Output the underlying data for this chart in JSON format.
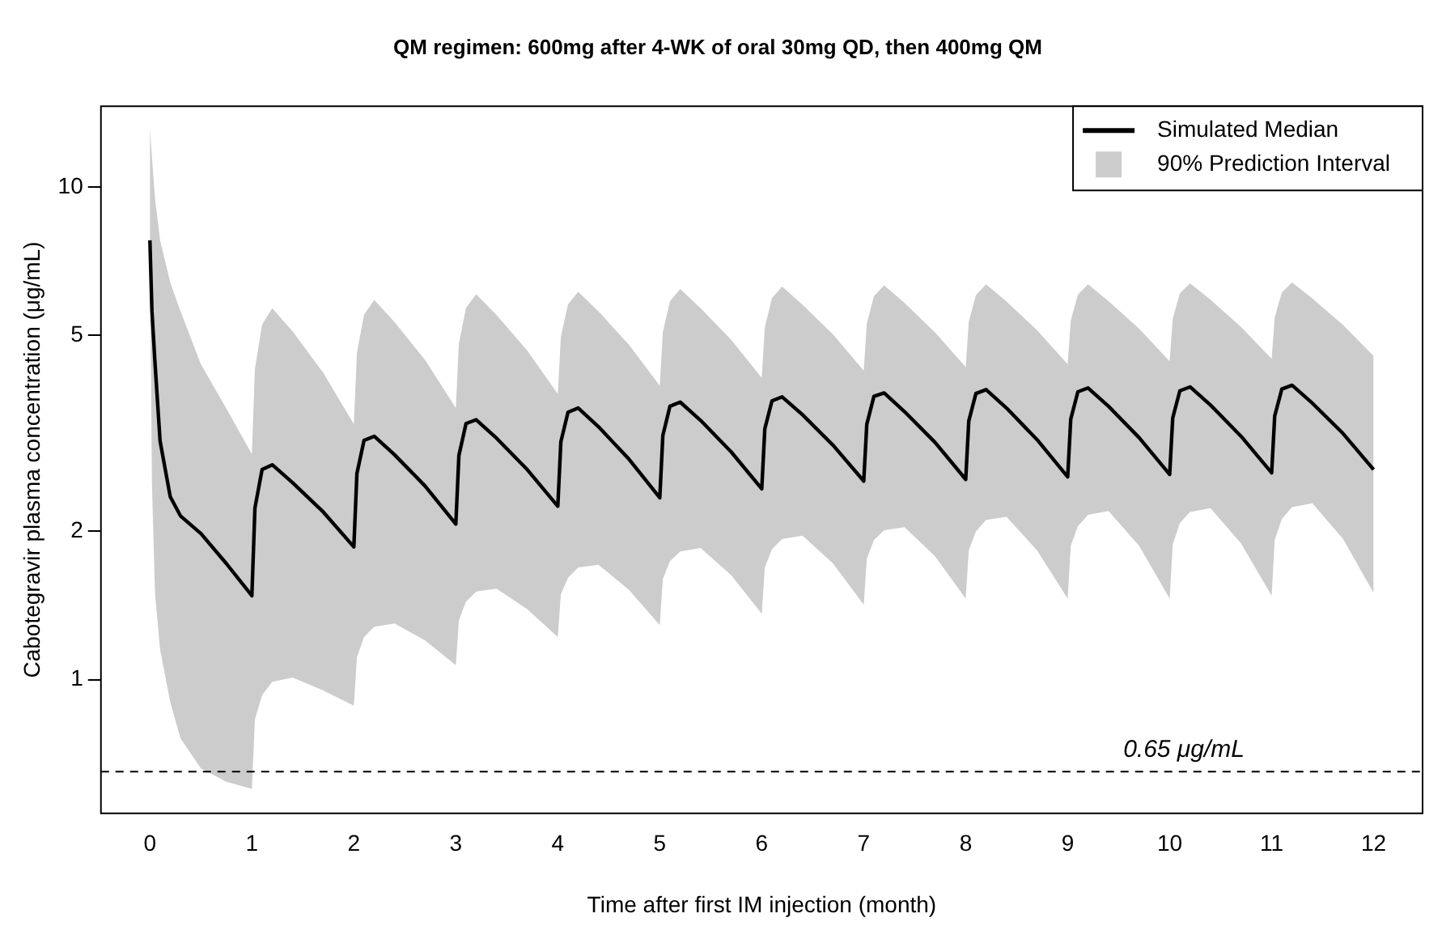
{
  "chart_data": {
    "type": "line",
    "title": "QM regimen: 600mg after 4-WK of oral 30mg QD, then 400mg QM",
    "xlabel": "Time after first IM injection (month)",
    "ylabel": "Cabotegravir plasma concentration (μg/mL)",
    "x": [
      0,
      0.02,
      0.05,
      0.1,
      0.2,
      0.3,
      0.5,
      0.75,
      1,
      1.03,
      1.1,
      1.2,
      1.4,
      1.7,
      2,
      2.03,
      2.1,
      2.2,
      2.4,
      2.7,
      3,
      3.03,
      3.1,
      3.2,
      3.4,
      3.7,
      4,
      4.03,
      4.1,
      4.2,
      4.4,
      4.7,
      5,
      5.03,
      5.1,
      5.2,
      5.4,
      5.7,
      6,
      6.03,
      6.1,
      6.2,
      6.4,
      6.7,
      7,
      7.03,
      7.1,
      7.2,
      7.4,
      7.7,
      8,
      8.03,
      8.1,
      8.2,
      8.4,
      8.7,
      9,
      9.03,
      9.1,
      9.2,
      9.4,
      9.7,
      10,
      10.03,
      10.1,
      10.2,
      10.4,
      10.7,
      11,
      11.03,
      11.1,
      11.2,
      11.4,
      11.7,
      12
    ],
    "series": [
      {
        "name": "Simulated Median",
        "color": "#000000",
        "values": [
          7.8,
          5.6,
          4.4,
          3.05,
          2.35,
          2.15,
          1.98,
          1.72,
          1.48,
          2.23,
          2.67,
          2.73,
          2.51,
          2.19,
          1.86,
          2.62,
          3.06,
          3.12,
          2.86,
          2.47,
          2.07,
          2.85,
          3.31,
          3.37,
          3.09,
          2.67,
          2.25,
          3.04,
          3.49,
          3.56,
          3.26,
          2.8,
          2.34,
          3.13,
          3.59,
          3.66,
          3.36,
          2.9,
          2.44,
          3.23,
          3.68,
          3.75,
          3.45,
          2.99,
          2.53,
          3.3,
          3.76,
          3.82,
          3.5,
          3.03,
          2.55,
          3.35,
          3.81,
          3.88,
          3.56,
          3.07,
          2.58,
          3.38,
          3.84,
          3.91,
          3.59,
          3.1,
          2.61,
          3.4,
          3.86,
          3.93,
          3.61,
          3.12,
          2.63,
          3.43,
          3.89,
          3.96,
          3.64,
          3.16,
          2.67
        ]
      },
      {
        "name": "90% Prediction Interval",
        "type": "area",
        "color": "#cccccc",
        "values": [
          null,
          null,
          null,
          null,
          null,
          null,
          null,
          null,
          null,
          null,
          null,
          null,
          null,
          null,
          null,
          null,
          null,
          null,
          null,
          null,
          null,
          null,
          null,
          null,
          null,
          null,
          null,
          null,
          null,
          null,
          null,
          null,
          null,
          null,
          null,
          null,
          null,
          null,
          null,
          null,
          null,
          null,
          null,
          null,
          null,
          null,
          null,
          null,
          null,
          null,
          null,
          null,
          null,
          null,
          null,
          null,
          null,
          null,
          null,
          null,
          null,
          null,
          null,
          null,
          null,
          null,
          null,
          null,
          null,
          null,
          null,
          null,
          null,
          null,
          null
        ],
        "lower": [
          7.8,
          2.5,
          1.5,
          1.15,
          0.9,
          0.76,
          0.66,
          0.62,
          0.6,
          0.83,
          0.93,
          0.99,
          1.01,
          0.95,
          0.885,
          1.11,
          1.22,
          1.28,
          1.3,
          1.2,
          1.07,
          1.32,
          1.44,
          1.51,
          1.53,
          1.39,
          1.22,
          1.49,
          1.61,
          1.69,
          1.71,
          1.52,
          1.29,
          1.6,
          1.74,
          1.82,
          1.85,
          1.63,
          1.36,
          1.69,
          1.84,
          1.93,
          1.96,
          1.72,
          1.42,
          1.76,
          1.92,
          2.01,
          2.04,
          1.78,
          1.46,
          1.83,
          2,
          2.11,
          2.14,
          1.83,
          1.46,
          1.87,
          2.05,
          2.16,
          2.2,
          1.87,
          1.46,
          1.88,
          2.08,
          2.19,
          2.23,
          1.89,
          1.48,
          1.92,
          2.12,
          2.24,
          2.28,
          1.93,
          1.5
        ],
        "upper": [
          13.2,
          11.5,
          9.5,
          7.8,
          6.4,
          5.6,
          4.37,
          3.55,
          2.87,
          4.28,
          5.26,
          5.68,
          5.09,
          4.2,
          3.3,
          4.6,
          5.51,
          5.9,
          5.32,
          4.45,
          3.56,
          4.81,
          5.69,
          6.06,
          5.5,
          4.66,
          3.8,
          4.97,
          5.78,
          6.13,
          5.59,
          4.78,
          3.95,
          5.08,
          5.87,
          6.21,
          5.68,
          4.9,
          4.1,
          5.19,
          5.95,
          6.28,
          5.77,
          5.02,
          4.24,
          5.28,
          6.01,
          6.32,
          5.82,
          5.07,
          4.31,
          5.33,
          6.04,
          6.35,
          5.86,
          5.12,
          4.37,
          5.36,
          6.05,
          6.35,
          5.87,
          5.16,
          4.43,
          5.41,
          6.09,
          6.38,
          5.91,
          5.2,
          4.48,
          5.44,
          6.11,
          6.4,
          5.94,
          5.25,
          4.54
        ]
      }
    ],
    "xlim": [
      -0.48,
      12.48
    ],
    "xticks": [
      0,
      1,
      2,
      3,
      4,
      5,
      6,
      7,
      8,
      9,
      10,
      11,
      12
    ],
    "ylim": [
      0.535,
      14.6
    ],
    "yticks": [
      1,
      2,
      5,
      10
    ],
    "log": "y",
    "grid": false,
    "legend": "top right",
    "marker": "none",
    "line_style": "solid",
    "ref_lines": [
      {
        "axis": "y",
        "value": 0.65,
        "label": "0.65 μg/mL",
        "line_style": "dashed",
        "color": "#000000"
      }
    ]
  }
}
